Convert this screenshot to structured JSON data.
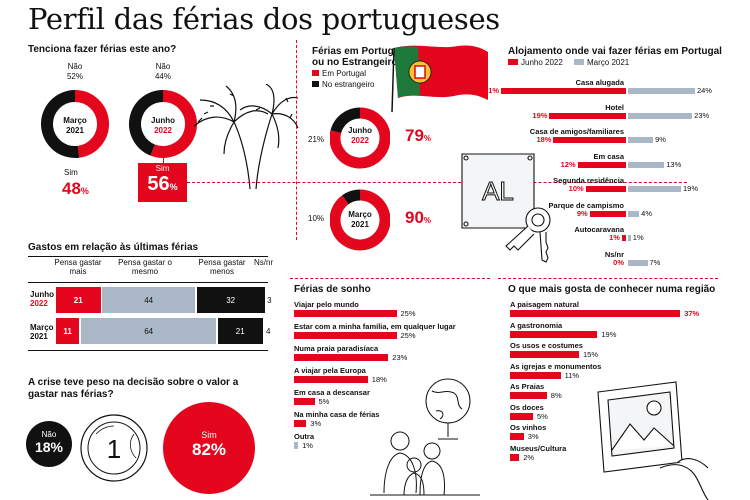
{
  "title": "Perfil das férias dos portugueses",
  "colors": {
    "red": "#e3061c",
    "black": "#111111",
    "grey": "#a9b7c6",
    "light": "#cdd6df"
  },
  "intend": {
    "question": "Tenciona fazer férias este ano?",
    "no_label": "Não",
    "yes_label": "Sim",
    "march": {
      "label1": "Março",
      "label2": "2021",
      "no": "52%",
      "yes": "48",
      "yes_suffix": "%"
    },
    "june": {
      "label1": "Junho",
      "label2": "2022",
      "no": "44%",
      "yes": "56",
      "yes_suffix": "%"
    }
  },
  "abroad": {
    "question1": "Férias em Portugal",
    "question2": "ou no Estrangeiro?",
    "legend_pt": "Em Portugal",
    "legend_ab": "No estrangeiro",
    "june": {
      "label1": "Junho",
      "label2": "2022",
      "abroad": "21%",
      "pt": "79",
      "suffix": "%"
    },
    "march": {
      "label1": "Março",
      "label2": "2021",
      "abroad": "10%",
      "pt": "90",
      "suffix": "%"
    }
  },
  "spend": {
    "title": "Gastos em relação às últimas férias",
    "col_more": "Pensa gastar mais",
    "col_same": "Pensa gastar o mesmo",
    "col_less": "Pensa gastar menos",
    "col_nsnr": "Ns/nr",
    "row1_l1": "Junho",
    "row1_l2": "2022",
    "row2_l1": "Março",
    "row2_l2": "2021",
    "r1": [
      "21",
      "44",
      "32",
      "3"
    ],
    "r2": [
      "11",
      "64",
      "21",
      "4"
    ]
  },
  "crisis": {
    "question": "A crise teve peso na decisão sobre o valor a gastar nas férias?",
    "no_label": "Não",
    "no_value": "18%",
    "yes_label": "Sim",
    "yes_value": "82%"
  },
  "lodging": {
    "title": "Alojamento onde vai fazer férias em Portugal",
    "legend_2022": "Junho 2022",
    "legend_2021": "Março 2021"
  },
  "dream": {
    "title": "Férias de sonho"
  },
  "region": {
    "title": "O que mais gosta de conhecer numa região"
  },
  "illustration": {
    "key_tag": "AL"
  },
  "chart_data": [
    {
      "type": "pie",
      "title": "Tenciona fazer férias este ano?",
      "series": [
        {
          "name": "Março 2021",
          "values": {
            "Não": 52,
            "Sim": 48
          }
        },
        {
          "name": "Junho 2022",
          "values": {
            "Não": 44,
            "Sim": 56
          }
        }
      ]
    },
    {
      "type": "pie",
      "title": "Férias em Portugal ou no Estrangeiro?",
      "series": [
        {
          "name": "Junho 2022",
          "values": {
            "Em Portugal": 79,
            "No estrangeiro": 21
          }
        },
        {
          "name": "Março 2021",
          "values": {
            "Em Portugal": 90,
            "No estrangeiro": 10
          }
        }
      ]
    },
    {
      "type": "bar",
      "title": "Gastos em relação às últimas férias",
      "categories": [
        "Pensa gastar mais",
        "Pensa gastar o mesmo",
        "Pensa gastar menos",
        "Ns/nr"
      ],
      "series": [
        {
          "name": "Junho 2022",
          "values": [
            21,
            44,
            32,
            3
          ]
        },
        {
          "name": "Março 2021",
          "values": [
            11,
            64,
            21,
            4
          ]
        }
      ]
    },
    {
      "type": "pie",
      "title": "A crise teve peso na decisão sobre o valor a gastar nas férias?",
      "categories": [
        "Não",
        "Sim"
      ],
      "values": [
        18,
        82
      ]
    },
    {
      "type": "bar",
      "title": "Alojamento onde vai fazer férias em Portugal",
      "categories": [
        "Casa alugada",
        "Hotel",
        "Casa de amigos/familiares",
        "Em casa",
        "Segunda residência",
        "Parque de campismo",
        "Autocaravana",
        "Ns/nr"
      ],
      "series": [
        {
          "name": "Junho 2022",
          "values": [
            31,
            19,
            18,
            12,
            10,
            9,
            1,
            0
          ]
        },
        {
          "name": "Março 2021",
          "values": [
            24,
            23,
            9,
            13,
            19,
            4,
            1,
            7
          ]
        }
      ]
    },
    {
      "type": "bar",
      "title": "Férias de sonho",
      "categories": [
        "Viajar pelo mundo",
        "Estar com a minha família, em qualquer lugar",
        "Numa praia paradisíaca",
        "A viajar pela Europa",
        "Em casa a descansar",
        "Na minha casa de férias",
        "Outra"
      ],
      "values": [
        25,
        25,
        23,
        18,
        5,
        3,
        1
      ]
    },
    {
      "type": "bar",
      "title": "O que mais gosta de conhecer numa região",
      "categories": [
        "A paisagem natural",
        "A gastronomia",
        "Os usos e costumes",
        "As igrejas e monumentos",
        "As Praias",
        "Os doces",
        "Os vinhos",
        "Museus/Cultura"
      ],
      "values": [
        37,
        19,
        15,
        11,
        8,
        5,
        3,
        2
      ]
    }
  ]
}
